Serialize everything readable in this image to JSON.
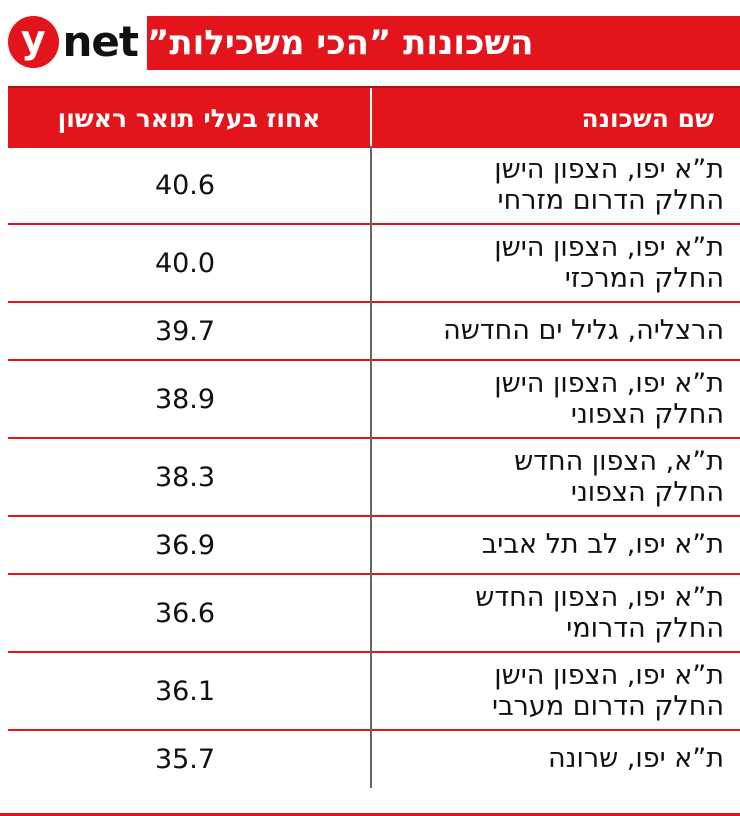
{
  "brand": {
    "logo_letter": "y",
    "logo_word": "net",
    "accent": "#e3141b"
  },
  "title": "השכונות ”הכי משכילות”",
  "table": {
    "headers": {
      "name": "שם השכונה",
      "pct": "אחוז בעלי תואר ראשון"
    },
    "rows": [
      {
        "name": [
          "ת”א יפו, הצפון הישן",
          "החלק הדרום מזרחי"
        ],
        "pct": "40.6"
      },
      {
        "name": [
          "ת”א יפו, הצפון הישן",
          "החלק המרכזי"
        ],
        "pct": "40.0"
      },
      {
        "name": [
          "הרצליה, גליל ים החדשה"
        ],
        "pct": "39.7"
      },
      {
        "name": [
          "ת”א יפו, הצפון הישן",
          "החלק הצפוני"
        ],
        "pct": "38.9"
      },
      {
        "name": [
          "ת”א, הצפון החדש",
          "החלק הצפוני"
        ],
        "pct": "38.3"
      },
      {
        "name": [
          "ת”א יפו, לב תל אביב"
        ],
        "pct": "36.9"
      },
      {
        "name": [
          "ת”א יפו, הצפון החדש",
          "החלק הדרומי"
        ],
        "pct": "36.6"
      },
      {
        "name": [
          "ת”א יפו, הצפון הישן",
          "החלק הדרום מערבי"
        ],
        "pct": "36.1"
      },
      {
        "name": [
          "ת”א יפו, שרונה"
        ],
        "pct": "35.7"
      }
    ]
  }
}
